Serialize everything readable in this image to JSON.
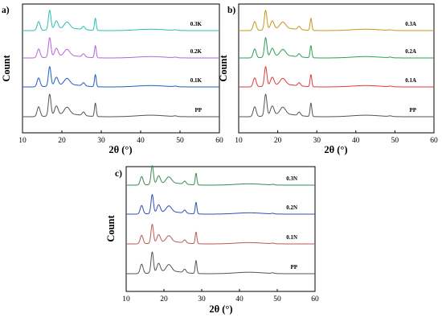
{
  "chart_data": [
    {
      "type": "line",
      "panel_label": "a)",
      "xlabel": "2θ (°)",
      "ylabel": "Count",
      "xlim": [
        10,
        60
      ],
      "x_ticks": [
        10,
        20,
        30,
        40,
        50,
        60
      ],
      "y_ticks_shown": false,
      "legend": "none (inline labels at right end of each trace)",
      "peaks_2theta": [
        14.1,
        16.9,
        18.6,
        21.3,
        25.5,
        28.5
      ],
      "series": [
        {
          "name": "PP",
          "color": "#555555"
        },
        {
          "name": "0.1K",
          "color": "#1f5fbf"
        },
        {
          "name": "0.2K",
          "color": "#b565d6"
        },
        {
          "name": "0.3K",
          "color": "#2bbfb3"
        }
      ]
    },
    {
      "type": "line",
      "panel_label": "b)",
      "xlabel": "2θ (°)",
      "ylabel": "Count",
      "xlim": [
        10,
        60
      ],
      "x_ticks": [
        10,
        20,
        30,
        40,
        50,
        60
      ],
      "y_ticks_shown": false,
      "legend": "none (inline labels at right end of each trace)",
      "peaks_2theta": [
        14.1,
        16.9,
        18.6,
        21.3,
        25.5,
        28.5
      ],
      "series": [
        {
          "name": "PP",
          "color": "#555555"
        },
        {
          "name": "0.1A",
          "color": "#e03a3a"
        },
        {
          "name": "0.2A",
          "color": "#2e9e58"
        },
        {
          "name": "0.3A",
          "color": "#c49a18"
        }
      ]
    },
    {
      "type": "line",
      "panel_label": "c)",
      "xlabel": "2θ (°)",
      "ylabel": "Count",
      "xlim": [
        10,
        60
      ],
      "x_ticks": [
        10,
        20,
        30,
        40,
        50,
        60
      ],
      "y_ticks_shown": false,
      "legend": "none (inline labels at right end of each trace)",
      "peaks_2theta": [
        14.1,
        16.9,
        18.6,
        21.3,
        25.5,
        28.5
      ],
      "series": [
        {
          "name": "PP",
          "color": "#555555"
        },
        {
          "name": "0.1N",
          "color": "#b85a5a"
        },
        {
          "name": "0.2N",
          "color": "#2f4fb8"
        },
        {
          "name": "0.3N",
          "color": "#3a8a55"
        }
      ]
    }
  ]
}
